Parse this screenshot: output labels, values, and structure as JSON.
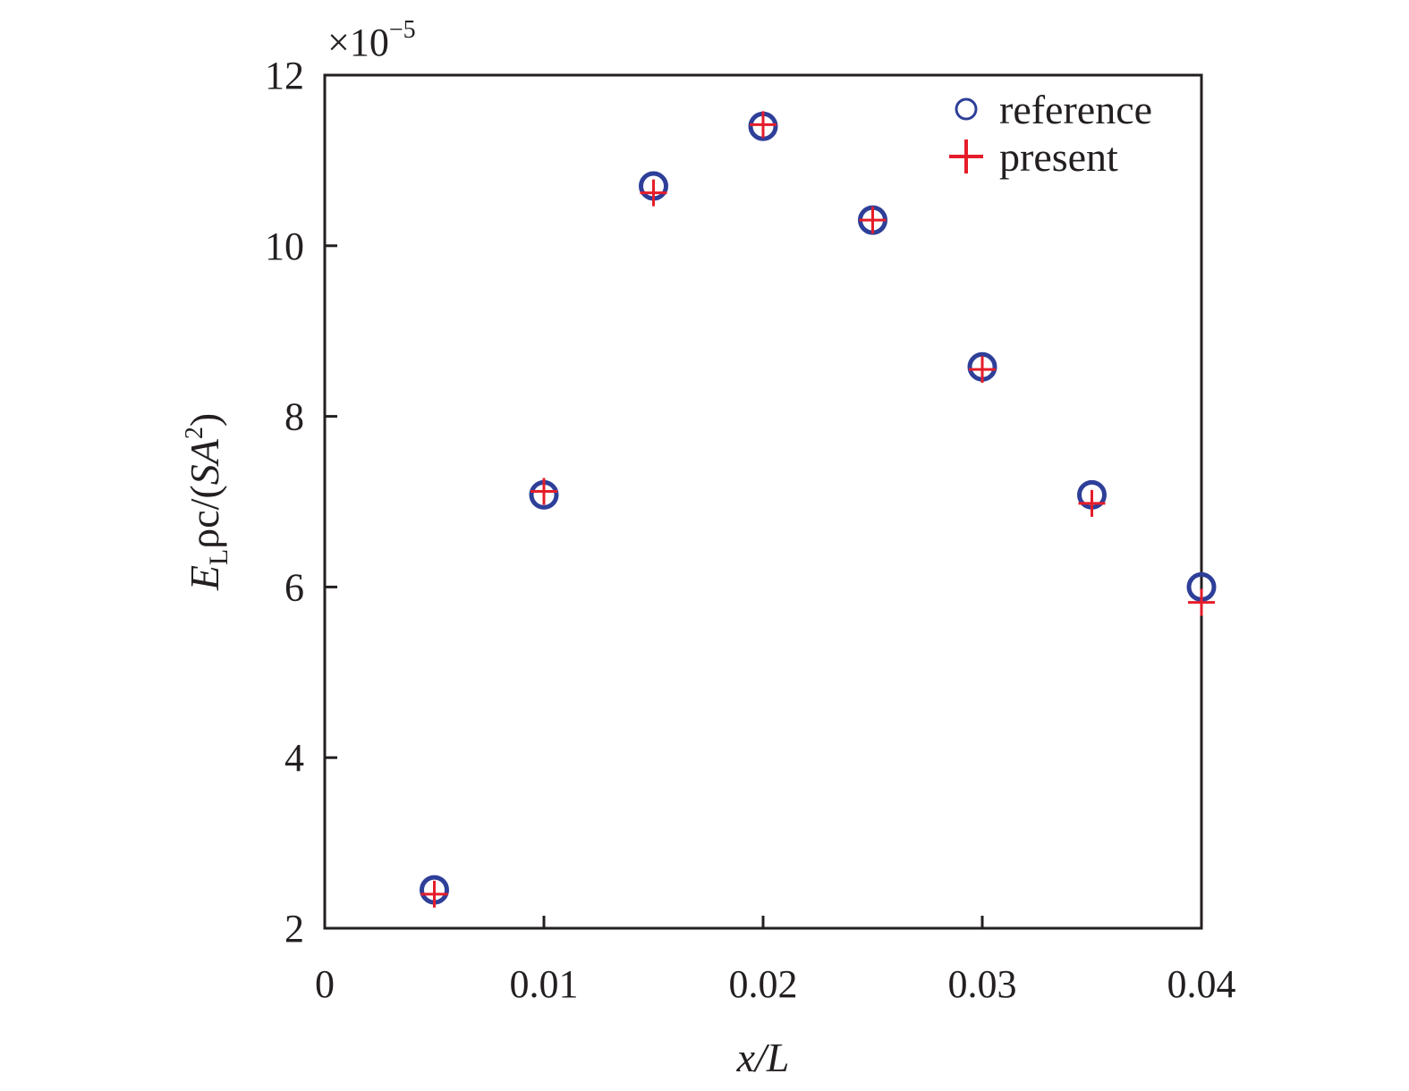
{
  "chart_data": {
    "type": "scatter",
    "xlabel": "x/L",
    "ylabel": {
      "main": "E",
      "sub": "L",
      "mid": "ρc/(",
      "it": "SA",
      "sup": "2",
      "end": ")"
    },
    "scale_factor": {
      "base": "×10",
      "exp": "−5"
    },
    "xlim": [
      0,
      0.04
    ],
    "ylim": [
      2,
      12
    ],
    "xticks": [
      0,
      0.01,
      0.02,
      0.03,
      0.04
    ],
    "xtick_labels": [
      "0",
      "0.01",
      "0.02",
      "0.03",
      "0.04"
    ],
    "yticks": [
      2,
      4,
      6,
      8,
      10,
      12
    ],
    "ytick_labels": [
      "2",
      "4",
      "6",
      "8",
      "10",
      "12"
    ],
    "legend_position": "top-right",
    "grid": false,
    "series": [
      {
        "name": "reference",
        "marker": "circle",
        "color": "#2e3f99",
        "x": [
          0.005,
          0.01,
          0.015,
          0.02,
          0.025,
          0.03,
          0.035,
          0.04
        ],
        "y": [
          2.45,
          7.08,
          10.7,
          11.4,
          10.3,
          8.58,
          7.08,
          6.0
        ]
      },
      {
        "name": "present",
        "marker": "plus",
        "color": "#e51d2a",
        "x": [
          0.005,
          0.01,
          0.015,
          0.02,
          0.025,
          0.03,
          0.035,
          0.04
        ],
        "y": [
          2.4,
          7.12,
          10.62,
          11.42,
          10.3,
          8.55,
          6.98,
          5.82
        ]
      }
    ]
  }
}
